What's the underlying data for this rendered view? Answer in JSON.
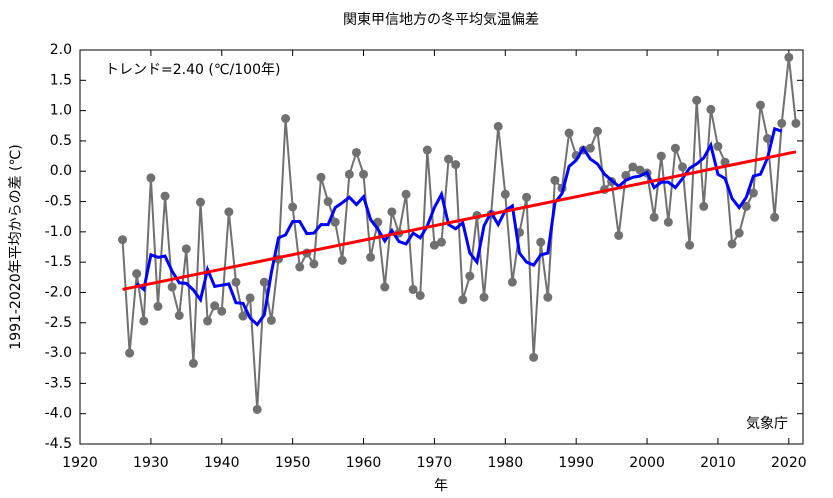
{
  "chart_data": {
    "type": "line",
    "title": "関東甲信地方の冬平均気温偏差",
    "xlabel": "年",
    "ylabel": "1991-2020年平均からの差 (℃)",
    "annotations": [
      "トレンド=2.40 (℃/100年)",
      "気象庁"
    ],
    "xlim": [
      1920,
      2022
    ],
    "ylim": [
      -4.5,
      2.0
    ],
    "xticks": [
      1920,
      1930,
      1940,
      1950,
      1960,
      1970,
      1980,
      1990,
      2000,
      2010,
      2020
    ],
    "yticks": [
      {
        "value": 2.0,
        "label": "2.0"
      },
      {
        "value": 1.5,
        "label": "1.5"
      },
      {
        "value": 1.0,
        "label": "1.0"
      },
      {
        "value": 0.5,
        "label": "0.5"
      },
      {
        "value": 0.0,
        "label": "0.0"
      },
      {
        "value": -0.5,
        "label": "-0.5"
      },
      {
        "value": -1.0,
        "label": "-1.0"
      },
      {
        "value": -1.5,
        "label": "-1.5"
      },
      {
        "value": -2.0,
        "label": "-2.0"
      },
      {
        "value": -2.5,
        "label": "-2.5"
      },
      {
        "value": -3.0,
        "label": "-3.0"
      },
      {
        "value": -3.5,
        "label": "-3.5"
      },
      {
        "value": -4.0,
        "label": "-4.0"
      },
      {
        "value": -4.5,
        "label": "-4.5"
      }
    ],
    "grid": false,
    "x": [
      1926,
      1927,
      1928,
      1929,
      1930,
      1931,
      1932,
      1933,
      1934,
      1935,
      1936,
      1937,
      1938,
      1939,
      1940,
      1941,
      1942,
      1943,
      1944,
      1945,
      1946,
      1947,
      1948,
      1949,
      1950,
      1951,
      1952,
      1953,
      1954,
      1955,
      1956,
      1957,
      1958,
      1959,
      1960,
      1961,
      1962,
      1963,
      1964,
      1965,
      1966,
      1967,
      1968,
      1969,
      1970,
      1971,
      1972,
      1973,
      1974,
      1975,
      1976,
      1977,
      1978,
      1979,
      1980,
      1981,
      1982,
      1983,
      1984,
      1985,
      1986,
      1987,
      1988,
      1989,
      1990,
      1991,
      1992,
      1993,
      1994,
      1995,
      1996,
      1997,
      1998,
      1999,
      2000,
      2001,
      2002,
      2003,
      2004,
      2005,
      2006,
      2007,
      2008,
      2009,
      2010,
      2011,
      2012,
      2013,
      2014,
      2015,
      2016,
      2017,
      2018,
      2019,
      2020,
      2021
    ],
    "series": [
      {
        "color": "#707070",
        "markers": true,
        "values": [
          -1.13,
          -3.0,
          -1.69,
          -2.47,
          -0.11,
          -2.23,
          -0.41,
          -1.91,
          -2.38,
          -1.28,
          -3.17,
          -0.51,
          -2.47,
          -2.22,
          -2.31,
          -0.67,
          -1.83,
          -2.39,
          -2.09,
          -3.93,
          -1.83,
          -2.46,
          -1.45,
          0.87,
          -0.59,
          -1.58,
          -1.35,
          -1.53,
          -0.1,
          -0.5,
          -0.84,
          -1.47,
          -0.05,
          0.31,
          -0.05,
          -1.42,
          -0.84,
          -1.91,
          -0.67,
          -1.02,
          -0.38,
          -1.95,
          -2.05,
          0.35,
          -1.22,
          -1.17,
          0.2,
          0.11,
          -2.12,
          -1.73,
          -0.73,
          -2.08,
          -0.71,
          0.74,
          -0.38,
          -1.83,
          -1.01,
          -0.43,
          -3.07,
          -1.17,
          -2.08,
          -0.15,
          -0.28,
          0.63,
          0.26,
          0.35,
          0.38,
          0.66,
          -0.3,
          -0.17,
          -1.06,
          -0.07,
          0.07,
          0.02,
          -0.03,
          -0.76,
          0.25,
          -0.84,
          0.38,
          0.07,
          -1.22,
          1.17,
          -0.58,
          1.02,
          0.41,
          0.15,
          -1.2,
          -1.02,
          -0.58,
          -0.36,
          1.09,
          0.54,
          -0.76,
          0.79,
          1.88,
          0.79
        ]
      },
      {
        "color": "#0000ff",
        "markers": false,
        "values": [
          null,
          null,
          -1.85,
          -1.95,
          -1.38,
          -1.42,
          -1.4,
          -1.65,
          -1.84,
          -1.85,
          -1.96,
          -2.12,
          -1.62,
          -1.9,
          -1.88,
          -1.86,
          -2.17,
          -2.18,
          -2.42,
          -2.53,
          -2.37,
          -1.67,
          -1.1,
          -1.05,
          -0.83,
          -0.83,
          -1.03,
          -1.02,
          -0.88,
          -0.88,
          -0.6,
          -0.52,
          -0.43,
          -0.55,
          -0.42,
          -0.8,
          -0.95,
          -1.15,
          -0.98,
          -1.16,
          -1.2,
          -1.02,
          -1.1,
          -0.9,
          -0.6,
          -0.38,
          -0.88,
          -0.95,
          -0.85,
          -1.35,
          -1.5,
          -0.9,
          -0.68,
          -0.88,
          -0.65,
          -0.57,
          -1.35,
          -1.5,
          -1.55,
          -1.38,
          -1.35,
          -0.52,
          -0.37,
          0.08,
          0.18,
          0.38,
          0.2,
          0.12,
          -0.05,
          -0.15,
          -0.25,
          -0.15,
          -0.1,
          -0.08,
          -0.02,
          -0.27,
          -0.18,
          -0.18,
          -0.27,
          -0.12,
          0.05,
          0.12,
          0.22,
          0.43,
          -0.05,
          -0.12,
          -0.45,
          -0.6,
          -0.43,
          -0.08,
          -0.05,
          0.22,
          0.7,
          0.66,
          null,
          null
        ]
      },
      {
        "color": "#ff0000",
        "markers": false,
        "x": [
          1926,
          2021
        ],
        "values": [
          -1.95,
          0.32
        ]
      }
    ]
  }
}
